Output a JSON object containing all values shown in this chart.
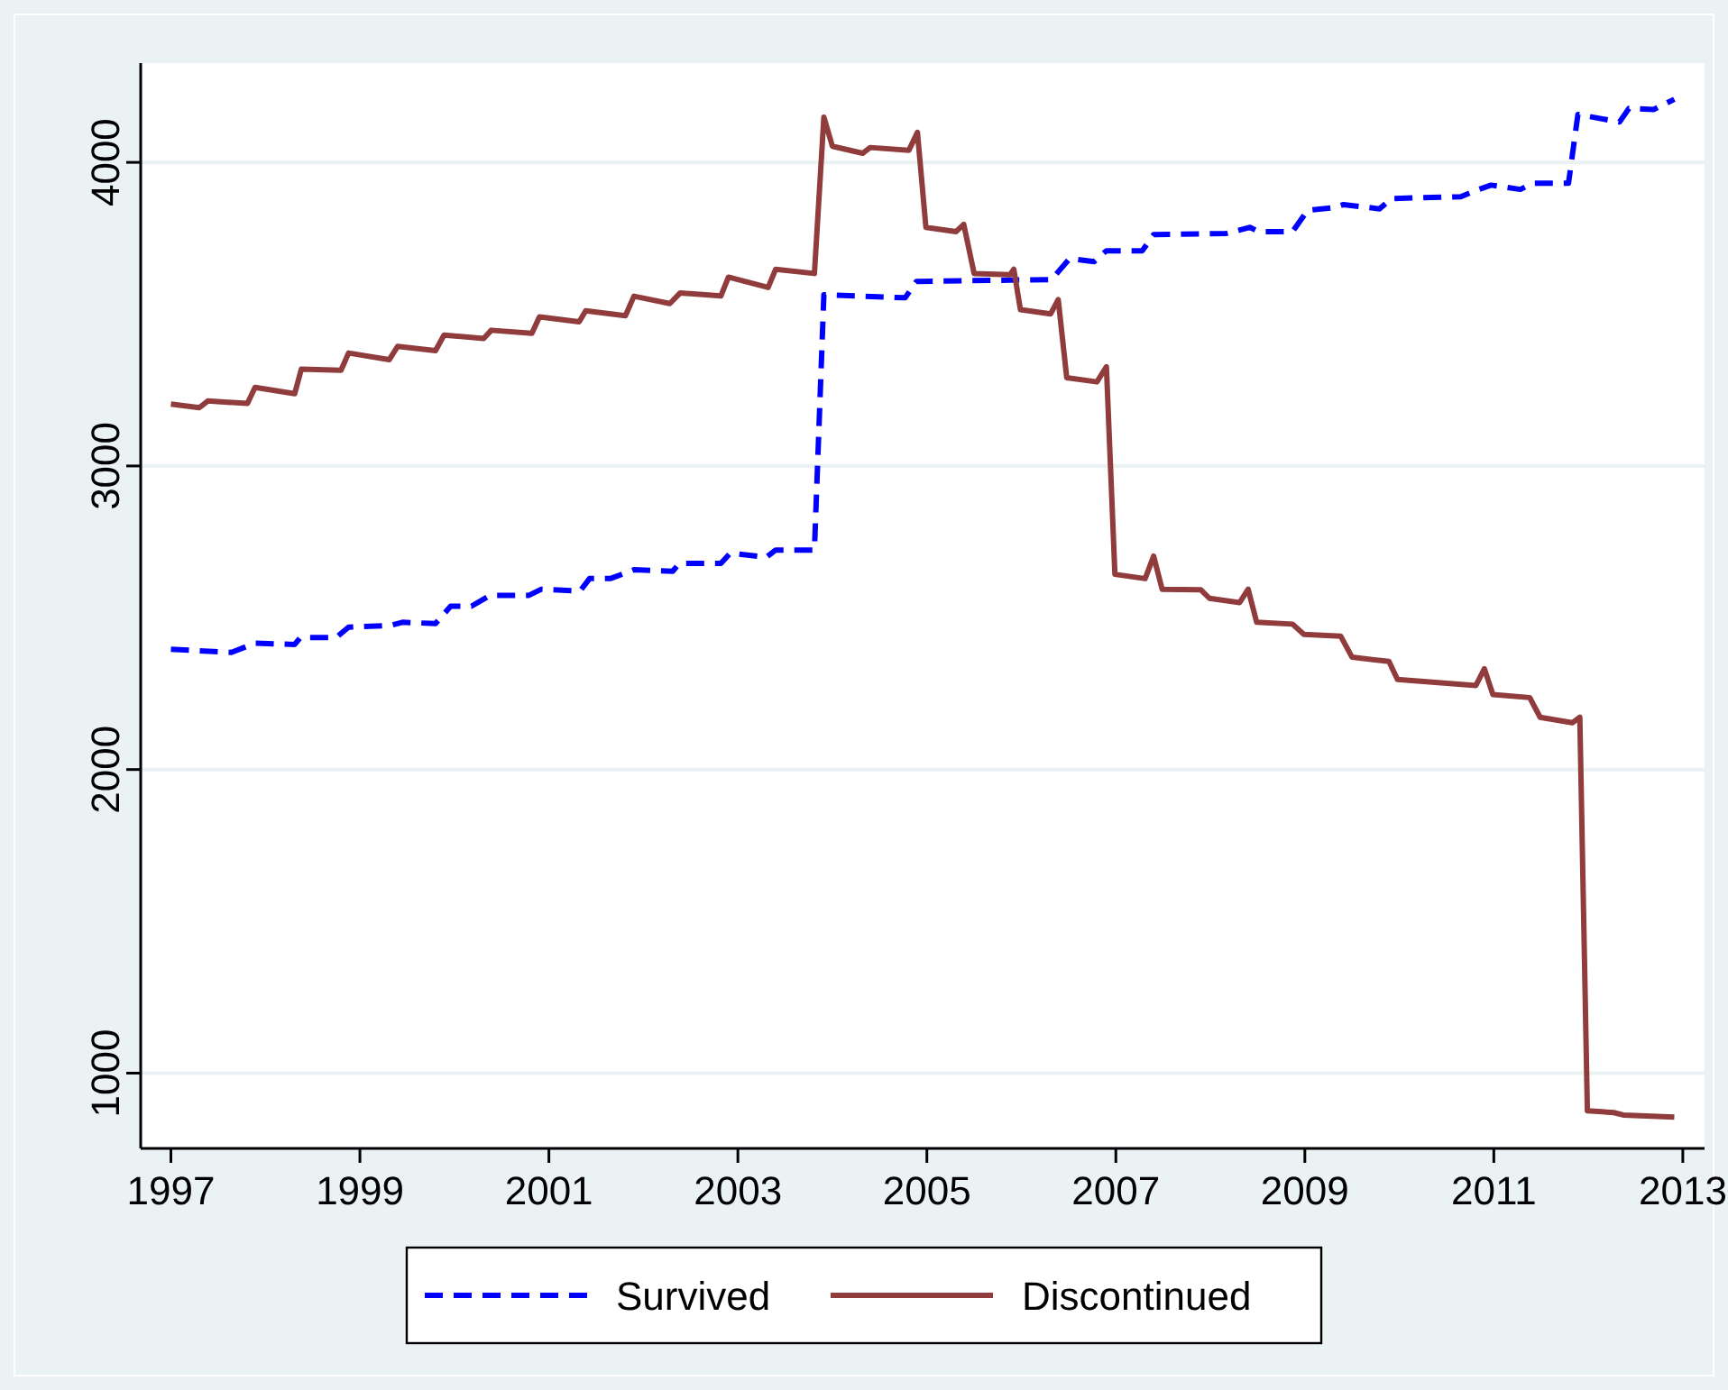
{
  "chart_data": {
    "type": "line",
    "xlim": [
      1996.68,
      2013.23
    ],
    "ylim": [
      752,
      4327
    ],
    "xticks": [
      1997,
      1999,
      2001,
      2003,
      2005,
      2007,
      2009,
      2011,
      2013
    ],
    "yticks": [
      1000,
      2000,
      3000,
      4000
    ],
    "grid": "y",
    "legend": "bottom",
    "marker": "none",
    "series": [
      {
        "name": "Survived",
        "color": "#0000ff",
        "line_style": "dashed",
        "x": [
          1997.0,
          1997.64,
          1997.89,
          1998.31,
          1998.37,
          1998.75,
          1998.88,
          1999.33,
          1999.45,
          1999.8,
          1999.96,
          2000.18,
          2000.38,
          2000.79,
          2000.92,
          2001.33,
          2001.43,
          2001.65,
          2001.9,
          2002.31,
          2002.38,
          2002.82,
          2002.92,
          2003.3,
          2003.4,
          2003.81,
          2003.91,
          2004.77,
          2004.89,
          2006.32,
          2006.51,
          2006.77,
          2006.9,
          2007.28,
          2007.4,
          2008.17,
          2008.42,
          2008.51,
          2008.87,
          2009.03,
          2009.31,
          2009.41,
          2009.79,
          2009.92,
          2010.65,
          2010.84,
          2010.97,
          2011.28,
          2011.41,
          2011.79,
          2011.89,
          2012.33,
          2012.43,
          2012.69,
          2012.91
        ],
        "values": [
          2396,
          2386,
          2416,
          2412,
          2435,
          2435,
          2469,
          2475,
          2485,
          2481,
          2538,
          2538,
          2574,
          2574,
          2594,
          2588,
          2629,
          2629,
          2658,
          2653,
          2679,
          2679,
          2713,
          2699,
          2723,
          2723,
          3564,
          3554,
          3608,
          3614,
          3683,
          3673,
          3709,
          3709,
          3762,
          3766,
          3786,
          3772,
          3772,
          3842,
          3851,
          3861,
          3847,
          3881,
          3887,
          3911,
          3925,
          3911,
          3931,
          3931,
          4158,
          4133,
          4178,
          4174,
          4208
        ]
      },
      {
        "name": "Discontinued",
        "color": "#903c3c",
        "line_style": "solid",
        "x": [
          1997.0,
          1997.3,
          1997.39,
          1997.81,
          1997.89,
          1998.31,
          1998.38,
          1998.8,
          1998.88,
          1999.31,
          1999.4,
          1999.8,
          1999.89,
          2000.31,
          2000.39,
          2000.82,
          2000.9,
          2001.32,
          2001.39,
          2001.81,
          2001.9,
          2002.28,
          2002.39,
          2002.82,
          2002.9,
          2003.32,
          2003.4,
          2003.81,
          2003.91,
          2004.0,
          2004.32,
          2004.4,
          2004.81,
          2004.9,
          2004.99,
          2005.31,
          2005.39,
          2005.5,
          2005.88,
          2005.92,
          2005.99,
          2006.31,
          2006.39,
          2006.48,
          2006.8,
          2006.9,
          2006.99,
          2007.31,
          2007.4,
          2007.49,
          2007.9,
          2007.99,
          2008.31,
          2008.4,
          2008.49,
          2008.87,
          2008.99,
          2009.38,
          2009.5,
          2009.89,
          2009.98,
          2010.81,
          2010.9,
          2010.99,
          2011.38,
          2011.49,
          2011.83,
          2011.91,
          2011.99,
          2012.27,
          2012.37,
          2012.91
        ],
        "values": [
          3204,
          3192,
          3214,
          3206,
          3259,
          3238,
          3319,
          3315,
          3372,
          3350,
          3394,
          3380,
          3431,
          3420,
          3447,
          3437,
          3491,
          3475,
          3511,
          3495,
          3559,
          3535,
          3570,
          3560,
          3622,
          3588,
          3648,
          3634,
          4149,
          4053,
          4030,
          4049,
          4040,
          4099,
          3786,
          3772,
          3796,
          3634,
          3630,
          3648,
          3515,
          3501,
          3548,
          3291,
          3277,
          3327,
          2643,
          2629,
          2703,
          2594,
          2592,
          2564,
          2550,
          2594,
          2485,
          2479,
          2445,
          2439,
          2370,
          2356,
          2297,
          2277,
          2332,
          2247,
          2237,
          2172,
          2154,
          2172,
          876,
          870,
          862,
          855
        ]
      }
    ]
  }
}
